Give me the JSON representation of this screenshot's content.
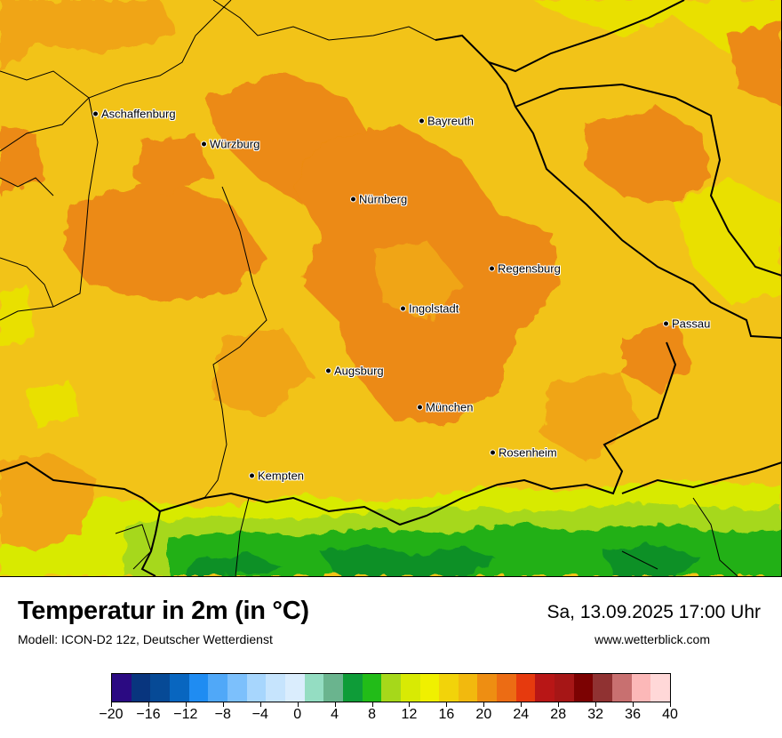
{
  "map": {
    "cities": [
      {
        "name": "Aschaffenburg"
      },
      {
        "name": "Würzburg"
      },
      {
        "name": "Bayreuth"
      },
      {
        "name": "Nürnberg"
      },
      {
        "name": "Regensburg"
      },
      {
        "name": "Ingolstadt"
      },
      {
        "name": "Passau"
      },
      {
        "name": "Augsburg"
      },
      {
        "name": "München"
      },
      {
        "name": "Rosenheim"
      },
      {
        "name": "Kempten"
      }
    ],
    "colors": {
      "base": "#f2c318",
      "warm": "#f0a514",
      "hot": "#ec8a12",
      "cool": "#e9e000",
      "alpine_green": "#22b018",
      "alpine_dark": "#0a9028",
      "alpine_light": "#a6d81a",
      "border": "#000000"
    }
  },
  "footer": {
    "title": "Temperatur in 2m (in °C)",
    "subtitle": "Modell: ICON-D2 12z, Deutscher Wetterdienst",
    "datetime": "Sa, 13.09.2025 17:00 Uhr",
    "website": "www.wetterblick.com"
  },
  "legend": {
    "colors": [
      "#2b0a82",
      "#08357e",
      "#064a96",
      "#0866c0",
      "#1f8cf2",
      "#50a8f8",
      "#7cc0fc",
      "#a7d6fd",
      "#c6e4fd",
      "#daedfd",
      "#94ddc2",
      "#6ab48e",
      "#0e9c38",
      "#22bc18",
      "#a6d81a",
      "#d8ea04",
      "#f0f000",
      "#f2d30a",
      "#f2b90e",
      "#ee8e12",
      "#ec6c14",
      "#e63a0e",
      "#b81616",
      "#a61616",
      "#7c0202",
      "#903232",
      "#c87070",
      "#fcb8b8",
      "#ffd8d8"
    ],
    "tick_labels": [
      "−20",
      "−16",
      "−12",
      "−8",
      "−4",
      "0",
      "4",
      "8",
      "12",
      "16",
      "20",
      "24",
      "28",
      "32",
      "36",
      "40"
    ]
  }
}
